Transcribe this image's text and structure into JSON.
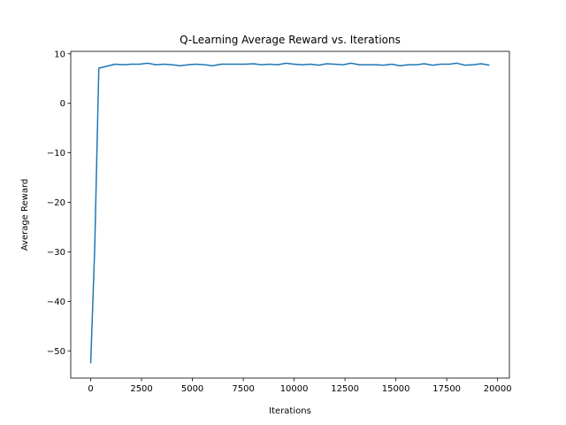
{
  "chart_data": {
    "type": "line",
    "title": "Q-Learning Average Reward vs. Iterations",
    "xlabel": "Iterations",
    "ylabel": "Average Reward",
    "xlim": [
      -980,
      20580
    ],
    "ylim": [
      -55.5,
      10.5
    ],
    "xticks": [
      0,
      2500,
      5000,
      7500,
      10000,
      12500,
      15000,
      17500,
      20000
    ],
    "xtick_labels": [
      "0",
      "2500",
      "5000",
      "7500",
      "10000",
      "12500",
      "15000",
      "17500",
      "20000"
    ],
    "yticks": [
      -50,
      -40,
      -30,
      -20,
      -10,
      0,
      10
    ],
    "ytick_labels": [
      "−50",
      "−40",
      "−30",
      "−20",
      "−10",
      "0",
      "10"
    ],
    "grid": false,
    "color": "#1f77b4",
    "series": [
      {
        "x": [
          0,
          200,
          400,
          1200,
          1600,
          2000,
          2400,
          2800,
          3200,
          3600,
          4000,
          4400,
          4800,
          5200,
          5600,
          6000,
          6400,
          6800,
          7200,
          7600,
          8000,
          8400,
          8800,
          9200,
          9600,
          10000,
          10400,
          10800,
          11200,
          11600,
          12000,
          12400,
          12800,
          13200,
          13600,
          14000,
          14400,
          14800,
          15200,
          15600,
          16000,
          16400,
          16800,
          17200,
          17600,
          18000,
          18400,
          18800,
          19200,
          19600
        ],
        "y": [
          -52.5,
          -29.0,
          7.1,
          7.9,
          7.8,
          7.9,
          7.9,
          8.1,
          7.8,
          7.9,
          7.8,
          7.6,
          7.8,
          7.9,
          7.8,
          7.6,
          7.9,
          7.9,
          7.9,
          7.9,
          8.0,
          7.8,
          7.9,
          7.8,
          8.1,
          7.9,
          7.8,
          7.9,
          7.7,
          8.0,
          7.9,
          7.8,
          8.1,
          7.8,
          7.8,
          7.8,
          7.7,
          7.9,
          7.6,
          7.8,
          7.8,
          8.0,
          7.7,
          7.9,
          7.9,
          8.1,
          7.7,
          7.8,
          8.0,
          7.7
        ]
      }
    ]
  }
}
